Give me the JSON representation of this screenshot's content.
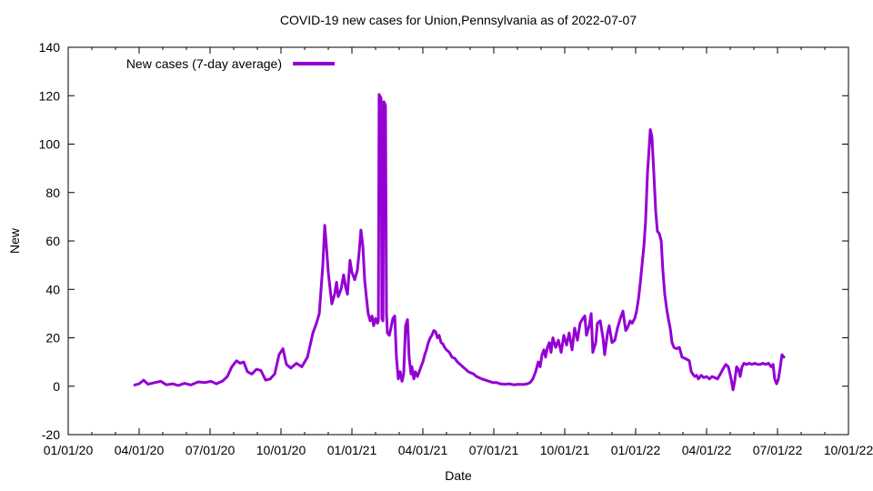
{
  "title": "COVID-19 new cases for Union,Pennsylvania as of 2022-07-07",
  "legend": {
    "label": "New cases (7-day average)"
  },
  "axes": {
    "x_label": "Date",
    "y_label": "New"
  },
  "colors": {
    "line": "#9400d3",
    "text": "#000000",
    "background": "#ffffff"
  },
  "chart_data": {
    "type": "line",
    "title": "COVID-19 new cases for Union,Pennsylvania as of 2022-07-07",
    "xlabel": "Date",
    "ylabel": "New",
    "legend_position": "top-left-inside",
    "grid": false,
    "x_unit": "months since 2020-01-01",
    "xlim": [
      0,
      33
    ],
    "ylim": [
      -20,
      140
    ],
    "x_ticks": [
      0,
      3,
      6,
      9,
      12,
      15,
      18,
      21,
      24,
      27,
      30,
      33
    ],
    "x_tick_labels": [
      "01/01/20",
      "04/01/20",
      "07/01/20",
      "10/01/20",
      "01/01/21",
      "04/01/21",
      "07/01/21",
      "10/01/21",
      "01/01/22",
      "04/01/22",
      "07/01/22",
      "10/01/22"
    ],
    "y_ticks": [
      -20,
      0,
      20,
      40,
      60,
      80,
      100,
      120,
      140
    ],
    "minor_x_tick_interval_months": 1,
    "line_color": "#9400d3",
    "line_width": 3,
    "series": [
      {
        "name": "New cases (7-day average)",
        "points": [
          [
            2.81,
            0.5
          ],
          [
            3.0,
            1
          ],
          [
            3.19,
            2.5
          ],
          [
            3.38,
            0.8
          ],
          [
            3.65,
            1.5
          ],
          [
            3.92,
            2
          ],
          [
            4.15,
            0.6
          ],
          [
            4.42,
            1
          ],
          [
            4.65,
            0.3
          ],
          [
            4.92,
            1.2
          ],
          [
            5.19,
            0.5
          ],
          [
            5.5,
            1.8
          ],
          [
            5.77,
            1.5
          ],
          [
            6.04,
            2
          ],
          [
            6.27,
            1
          ],
          [
            6.54,
            2.2
          ],
          [
            6.73,
            4
          ],
          [
            6.92,
            8
          ],
          [
            7.12,
            10.5
          ],
          [
            7.27,
            9.5
          ],
          [
            7.42,
            10
          ],
          [
            7.58,
            6
          ],
          [
            7.77,
            5
          ],
          [
            7.96,
            7
          ],
          [
            8.15,
            6.5
          ],
          [
            8.35,
            2.5
          ],
          [
            8.54,
            3
          ],
          [
            8.73,
            5
          ],
          [
            8.92,
            13
          ],
          [
            9.08,
            15.5
          ],
          [
            9.23,
            9
          ],
          [
            9.42,
            7.5
          ],
          [
            9.65,
            9.5
          ],
          [
            9.88,
            8
          ],
          [
            10.12,
            12
          ],
          [
            10.19,
            15
          ],
          [
            10.35,
            22
          ],
          [
            10.5,
            26
          ],
          [
            10.62,
            30
          ],
          [
            10.77,
            50
          ],
          [
            10.85,
            66.5
          ],
          [
            10.92,
            58
          ],
          [
            11.0,
            47
          ],
          [
            11.08,
            40
          ],
          [
            11.15,
            34
          ],
          [
            11.27,
            38
          ],
          [
            11.35,
            43
          ],
          [
            11.42,
            37
          ],
          [
            11.54,
            40
          ],
          [
            11.65,
            46
          ],
          [
            11.73,
            41
          ],
          [
            11.81,
            38
          ],
          [
            11.92,
            52
          ],
          [
            12.0,
            47
          ],
          [
            12.12,
            44
          ],
          [
            12.23,
            48
          ],
          [
            12.31,
            56
          ],
          [
            12.38,
            64.5
          ],
          [
            12.46,
            58
          ],
          [
            12.54,
            44
          ],
          [
            12.62,
            36
          ],
          [
            12.69,
            30
          ],
          [
            12.77,
            27
          ],
          [
            12.85,
            29
          ],
          [
            12.92,
            25
          ],
          [
            13.0,
            28
          ],
          [
            13.08,
            26
          ],
          [
            13.12,
            27
          ],
          [
            13.15,
            120.5
          ],
          [
            13.23,
            119
          ],
          [
            13.27,
            28
          ],
          [
            13.31,
            27
          ],
          [
            13.35,
            117.5
          ],
          [
            13.42,
            116
          ],
          [
            13.46,
            30
          ],
          [
            13.5,
            22
          ],
          [
            13.58,
            21
          ],
          [
            13.65,
            24
          ],
          [
            13.73,
            28
          ],
          [
            13.81,
            29
          ],
          [
            13.88,
            12
          ],
          [
            13.96,
            3
          ],
          [
            14.04,
            6
          ],
          [
            14.12,
            2
          ],
          [
            14.19,
            5
          ],
          [
            14.27,
            25
          ],
          [
            14.35,
            27.5
          ],
          [
            14.42,
            12
          ],
          [
            14.5,
            5
          ],
          [
            14.54,
            8
          ],
          [
            14.62,
            3
          ],
          [
            14.69,
            6
          ],
          [
            14.77,
            4
          ],
          [
            14.85,
            6
          ],
          [
            14.92,
            8
          ],
          [
            15.0,
            10
          ],
          [
            15.08,
            13
          ],
          [
            15.15,
            15
          ],
          [
            15.23,
            18
          ],
          [
            15.31,
            20
          ],
          [
            15.38,
            21
          ],
          [
            15.46,
            23
          ],
          [
            15.54,
            22.5
          ],
          [
            15.62,
            20
          ],
          [
            15.69,
            21
          ],
          [
            15.77,
            18
          ],
          [
            15.85,
            17.5
          ],
          [
            15.92,
            16
          ],
          [
            16.0,
            15
          ],
          [
            16.12,
            14
          ],
          [
            16.23,
            12
          ],
          [
            16.35,
            11.5
          ],
          [
            16.46,
            10
          ],
          [
            16.58,
            9
          ],
          [
            16.69,
            8
          ],
          [
            16.81,
            7
          ],
          [
            16.92,
            6
          ],
          [
            17.04,
            5.5
          ],
          [
            17.15,
            5
          ],
          [
            17.27,
            4
          ],
          [
            17.38,
            3.5
          ],
          [
            17.5,
            3
          ],
          [
            17.65,
            2.5
          ],
          [
            17.81,
            2
          ],
          [
            17.96,
            1.5
          ],
          [
            18.12,
            1.5
          ],
          [
            18.27,
            1
          ],
          [
            18.46,
            0.8
          ],
          [
            18.65,
            1
          ],
          [
            18.85,
            0.6
          ],
          [
            19.04,
            0.8
          ],
          [
            19.23,
            0.7
          ],
          [
            19.42,
            1
          ],
          [
            19.54,
            1.5
          ],
          [
            19.65,
            3
          ],
          [
            19.77,
            6
          ],
          [
            19.88,
            10
          ],
          [
            19.96,
            8
          ],
          [
            20.04,
            13
          ],
          [
            20.12,
            15
          ],
          [
            20.19,
            12
          ],
          [
            20.27,
            16
          ],
          [
            20.35,
            18
          ],
          [
            20.42,
            14
          ],
          [
            20.5,
            20
          ],
          [
            20.62,
            16
          ],
          [
            20.73,
            19
          ],
          [
            20.85,
            14
          ],
          [
            20.96,
            21
          ],
          [
            21.08,
            17
          ],
          [
            21.19,
            22
          ],
          [
            21.31,
            15
          ],
          [
            21.42,
            24
          ],
          [
            21.54,
            19
          ],
          [
            21.65,
            26
          ],
          [
            21.77,
            28
          ],
          [
            21.85,
            29
          ],
          [
            21.92,
            21
          ],
          [
            22.04,
            25
          ],
          [
            22.12,
            30
          ],
          [
            22.19,
            14
          ],
          [
            22.31,
            18
          ],
          [
            22.38,
            26
          ],
          [
            22.5,
            27
          ],
          [
            22.62,
            20
          ],
          [
            22.69,
            13
          ],
          [
            22.81,
            22
          ],
          [
            22.88,
            25
          ],
          [
            23.0,
            18
          ],
          [
            23.12,
            19
          ],
          [
            23.23,
            24
          ],
          [
            23.35,
            28
          ],
          [
            23.46,
            31
          ],
          [
            23.58,
            23
          ],
          [
            23.65,
            24
          ],
          [
            23.77,
            27
          ],
          [
            23.85,
            26
          ],
          [
            23.96,
            28
          ],
          [
            24.04,
            31
          ],
          [
            24.12,
            36
          ],
          [
            24.19,
            42
          ],
          [
            24.27,
            50
          ],
          [
            24.35,
            58
          ],
          [
            24.42,
            68
          ],
          [
            24.5,
            88
          ],
          [
            24.58,
            100
          ],
          [
            24.62,
            106
          ],
          [
            24.69,
            103
          ],
          [
            24.77,
            88
          ],
          [
            24.85,
            72
          ],
          [
            24.92,
            64
          ],
          [
            25.0,
            63
          ],
          [
            25.08,
            60
          ],
          [
            25.15,
            48
          ],
          [
            25.23,
            38
          ],
          [
            25.31,
            32
          ],
          [
            25.38,
            28
          ],
          [
            25.46,
            24
          ],
          [
            25.54,
            18
          ],
          [
            25.62,
            16
          ],
          [
            25.73,
            15.5
          ],
          [
            25.85,
            16
          ],
          [
            25.96,
            12
          ],
          [
            26.08,
            11.5
          ],
          [
            26.19,
            11
          ],
          [
            26.27,
            10.5
          ],
          [
            26.35,
            6
          ],
          [
            26.42,
            5
          ],
          [
            26.5,
            4
          ],
          [
            26.58,
            4.5
          ],
          [
            26.65,
            3
          ],
          [
            26.77,
            4.5
          ],
          [
            26.88,
            3.5
          ],
          [
            27.0,
            4
          ],
          [
            27.12,
            3
          ],
          [
            27.23,
            4
          ],
          [
            27.35,
            3.5
          ],
          [
            27.46,
            3
          ],
          [
            27.58,
            5
          ],
          [
            27.69,
            7
          ],
          [
            27.81,
            9
          ],
          [
            27.92,
            8
          ],
          [
            28.04,
            3
          ],
          [
            28.12,
            -1.5
          ],
          [
            28.19,
            2
          ],
          [
            28.27,
            8
          ],
          [
            28.35,
            7
          ],
          [
            28.42,
            4
          ],
          [
            28.5,
            8
          ],
          [
            28.58,
            9.5
          ],
          [
            28.69,
            9
          ],
          [
            28.81,
            9.5
          ],
          [
            28.92,
            9
          ],
          [
            29.04,
            9.5
          ],
          [
            29.15,
            9
          ],
          [
            29.27,
            9
          ],
          [
            29.38,
            9.5
          ],
          [
            29.5,
            9
          ],
          [
            29.62,
            9.5
          ],
          [
            29.73,
            8
          ],
          [
            29.81,
            9
          ],
          [
            29.88,
            3
          ],
          [
            29.96,
            1
          ],
          [
            30.04,
            3
          ],
          [
            30.12,
            8
          ],
          [
            30.19,
            13
          ],
          [
            30.27,
            12
          ]
        ]
      }
    ]
  }
}
